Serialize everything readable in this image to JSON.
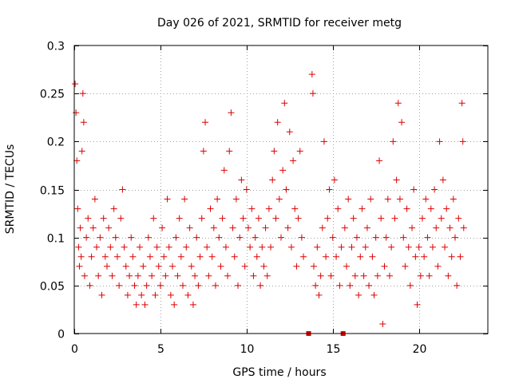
{
  "chart_data": {
    "type": "scatter",
    "title": "Day 026 of 2021, SRMTID for receiver metg",
    "xlabel": "GPS time / hours",
    "ylabel": "SRMTID / TECUs",
    "xlim": [
      0,
      24
    ],
    "ylim": [
      0,
      0.3
    ],
    "xticks": [
      0,
      5,
      10,
      15,
      20
    ],
    "xtick_labels": [
      "0",
      "5",
      "10",
      "15",
      "20"
    ],
    "yticks": [
      0,
      0.05,
      0.1,
      0.15,
      0.2,
      0.25,
      0.3
    ],
    "ytick_labels": [
      "0",
      "0.05",
      "0.1",
      "0.15",
      "0.2",
      "0.25",
      "0.3"
    ],
    "grid": true,
    "marker": "plus",
    "color": "#dd0000",
    "data_gap_markers_x": [
      13.6,
      15.6
    ],
    "series": [
      {
        "name": "SRMTID",
        "points": [
          [
            0.05,
            0.26
          ],
          [
            0.1,
            0.23
          ],
          [
            0.15,
            0.18
          ],
          [
            0.2,
            0.13
          ],
          [
            0.25,
            0.09
          ],
          [
            0.3,
            0.07
          ],
          [
            0.35,
            0.11
          ],
          [
            0.4,
            0.08
          ],
          [
            0.45,
            0.19
          ],
          [
            0.5,
            0.25
          ],
          [
            0.55,
            0.22
          ],
          [
            0.6,
            0.06
          ],
          [
            0.7,
            0.1
          ],
          [
            0.8,
            0.12
          ],
          [
            0.9,
            0.05
          ],
          [
            1.0,
            0.08
          ],
          [
            1.1,
            0.11
          ],
          [
            1.2,
            0.14
          ],
          [
            1.3,
            0.09
          ],
          [
            1.4,
            0.06
          ],
          [
            1.5,
            0.1
          ],
          [
            1.6,
            0.04
          ],
          [
            1.7,
            0.12
          ],
          [
            1.8,
            0.08
          ],
          [
            1.9,
            0.07
          ],
          [
            2.0,
            0.11
          ],
          [
            2.1,
            0.09
          ],
          [
            2.2,
            0.06
          ],
          [
            2.3,
            0.13
          ],
          [
            2.4,
            0.1
          ],
          [
            2.5,
            0.08
          ],
          [
            2.6,
            0.05
          ],
          [
            2.7,
            0.12
          ],
          [
            2.8,
            0.15
          ],
          [
            2.9,
            0.09
          ],
          [
            3.0,
            0.07
          ],
          [
            3.1,
            0.04
          ],
          [
            3.2,
            0.06
          ],
          [
            3.3,
            0.1
          ],
          [
            3.4,
            0.08
          ],
          [
            3.5,
            0.05
          ],
          [
            3.6,
            0.03
          ],
          [
            3.7,
            0.06
          ],
          [
            3.8,
            0.09
          ],
          [
            3.9,
            0.04
          ],
          [
            4.0,
            0.07
          ],
          [
            4.1,
            0.03
          ],
          [
            4.2,
            0.05
          ],
          [
            4.3,
            0.1
          ],
          [
            4.4,
            0.08
          ],
          [
            4.5,
            0.06
          ],
          [
            4.6,
            0.12
          ],
          [
            4.7,
            0.04
          ],
          [
            4.8,
            0.09
          ],
          [
            4.9,
            0.07
          ],
          [
            5.0,
            0.05
          ],
          [
            5.1,
            0.11
          ],
          [
            5.2,
            0.08
          ],
          [
            5.3,
            0.06
          ],
          [
            5.4,
            0.14
          ],
          [
            5.5,
            0.09
          ],
          [
            5.6,
            0.04
          ],
          [
            5.7,
            0.07
          ],
          [
            5.8,
            0.03
          ],
          [
            5.9,
            0.1
          ],
          [
            6.0,
            0.06
          ],
          [
            6.1,
            0.12
          ],
          [
            6.2,
            0.08
          ],
          [
            6.3,
            0.05
          ],
          [
            6.4,
            0.14
          ],
          [
            6.5,
            0.09
          ],
          [
            6.6,
            0.04
          ],
          [
            6.7,
            0.11
          ],
          [
            6.8,
            0.07
          ],
          [
            6.9,
            0.03
          ],
          [
            7.0,
            0.06
          ],
          [
            7.1,
            0.1
          ],
          [
            7.2,
            0.05
          ],
          [
            7.3,
            0.08
          ],
          [
            7.4,
            0.12
          ],
          [
            7.5,
            0.19
          ],
          [
            7.6,
            0.22
          ],
          [
            7.7,
            0.09
          ],
          [
            7.8,
            0.06
          ],
          [
            7.9,
            0.13
          ],
          [
            8.0,
            0.08
          ],
          [
            8.1,
            0.11
          ],
          [
            8.2,
            0.05
          ],
          [
            8.3,
            0.14
          ],
          [
            8.4,
            0.1
          ],
          [
            8.5,
            0.07
          ],
          [
            8.6,
            0.12
          ],
          [
            8.7,
            0.17
          ],
          [
            8.8,
            0.09
          ],
          [
            8.9,
            0.06
          ],
          [
            9.0,
            0.19
          ],
          [
            9.1,
            0.23
          ],
          [
            9.2,
            0.11
          ],
          [
            9.3,
            0.08
          ],
          [
            9.4,
            0.14
          ],
          [
            9.5,
            0.05
          ],
          [
            9.6,
            0.1
          ],
          [
            9.7,
            0.16
          ],
          [
            9.8,
            0.12
          ],
          [
            9.9,
            0.07
          ],
          [
            10.0,
            0.15
          ],
          [
            10.1,
            0.11
          ],
          [
            10.2,
            0.09
          ],
          [
            10.3,
            0.13
          ],
          [
            10.4,
            0.06
          ],
          [
            10.5,
            0.1
          ],
          [
            10.6,
            0.08
          ],
          [
            10.7,
            0.12
          ],
          [
            10.8,
            0.05
          ],
          [
            10.9,
            0.09
          ],
          [
            11.0,
            0.07
          ],
          [
            11.1,
            0.11
          ],
          [
            11.2,
            0.06
          ],
          [
            11.3,
            0.13
          ],
          [
            11.4,
            0.09
          ],
          [
            11.5,
            0.16
          ],
          [
            11.6,
            0.19
          ],
          [
            11.7,
            0.12
          ],
          [
            11.8,
            0.22
          ],
          [
            11.9,
            0.14
          ],
          [
            12.0,
            0.1
          ],
          [
            12.1,
            0.17
          ],
          [
            12.2,
            0.24
          ],
          [
            12.3,
            0.15
          ],
          [
            12.4,
            0.11
          ],
          [
            12.5,
            0.21
          ],
          [
            12.6,
            0.09
          ],
          [
            12.7,
            0.18
          ],
          [
            12.8,
            0.13
          ],
          [
            12.9,
            0.07
          ],
          [
            13.0,
            0.12
          ],
          [
            13.1,
            0.19
          ],
          [
            13.2,
            0.1
          ],
          [
            13.3,
            0.08
          ],
          [
            13.8,
            0.27
          ],
          [
            13.85,
            0.25
          ],
          [
            13.9,
            0.07
          ],
          [
            14.0,
            0.05
          ],
          [
            14.1,
            0.09
          ],
          [
            14.2,
            0.04
          ],
          [
            14.3,
            0.06
          ],
          [
            14.4,
            0.11
          ],
          [
            14.5,
            0.2
          ],
          [
            14.6,
            0.08
          ],
          [
            14.7,
            0.12
          ],
          [
            14.8,
            0.15
          ],
          [
            14.9,
            0.06
          ],
          [
            15.0,
            0.1
          ],
          [
            15.1,
            0.16
          ],
          [
            15.2,
            0.08
          ],
          [
            15.3,
            0.13
          ],
          [
            15.4,
            0.05
          ],
          [
            15.5,
            0.09
          ],
          [
            15.7,
            0.11
          ],
          [
            15.8,
            0.07
          ],
          [
            15.9,
            0.14
          ],
          [
            16.0,
            0.05
          ],
          [
            16.1,
            0.09
          ],
          [
            16.2,
            0.12
          ],
          [
            16.3,
            0.06
          ],
          [
            16.4,
            0.1
          ],
          [
            16.5,
            0.04
          ],
          [
            16.6,
            0.08
          ],
          [
            16.7,
            0.13
          ],
          [
            16.8,
            0.06
          ],
          [
            16.9,
            0.09
          ],
          [
            17.0,
            0.11
          ],
          [
            17.1,
            0.05
          ],
          [
            17.2,
            0.14
          ],
          [
            17.3,
            0.08
          ],
          [
            17.4,
            0.04
          ],
          [
            17.5,
            0.1
          ],
          [
            17.6,
            0.06
          ],
          [
            17.7,
            0.18
          ],
          [
            17.8,
            0.12
          ],
          [
            17.9,
            0.01
          ],
          [
            18.0,
            0.07
          ],
          [
            18.1,
            0.1
          ],
          [
            18.2,
            0.14
          ],
          [
            18.3,
            0.06
          ],
          [
            18.4,
            0.09
          ],
          [
            18.5,
            0.2
          ],
          [
            18.6,
            0.12
          ],
          [
            18.7,
            0.16
          ],
          [
            18.8,
            0.24
          ],
          [
            18.9,
            0.14
          ],
          [
            19.0,
            0.22
          ],
          [
            19.1,
            0.1
          ],
          [
            19.2,
            0.07
          ],
          [
            19.3,
            0.13
          ],
          [
            19.4,
            0.09
          ],
          [
            19.5,
            0.05
          ],
          [
            19.6,
            0.11
          ],
          [
            19.7,
            0.15
          ],
          [
            19.8,
            0.08
          ],
          [
            19.9,
            0.03
          ],
          [
            20.0,
            0.09
          ],
          [
            20.1,
            0.06
          ],
          [
            20.2,
            0.12
          ],
          [
            20.3,
            0.08
          ],
          [
            20.4,
            0.14
          ],
          [
            20.5,
            0.1
          ],
          [
            20.6,
            0.06
          ],
          [
            20.7,
            0.13
          ],
          [
            20.8,
            0.09
          ],
          [
            20.9,
            0.15
          ],
          [
            21.0,
            0.11
          ],
          [
            21.1,
            0.07
          ],
          [
            21.2,
            0.2
          ],
          [
            21.3,
            0.12
          ],
          [
            21.4,
            0.16
          ],
          [
            21.5,
            0.09
          ],
          [
            21.6,
            0.13
          ],
          [
            21.7,
            0.06
          ],
          [
            21.8,
            0.11
          ],
          [
            21.9,
            0.08
          ],
          [
            22.0,
            0.14
          ],
          [
            22.1,
            0.1
          ],
          [
            22.2,
            0.05
          ],
          [
            22.3,
            0.12
          ],
          [
            22.4,
            0.08
          ],
          [
            22.5,
            0.24
          ],
          [
            22.55,
            0.2
          ],
          [
            22.6,
            0.11
          ]
        ]
      }
    ]
  }
}
